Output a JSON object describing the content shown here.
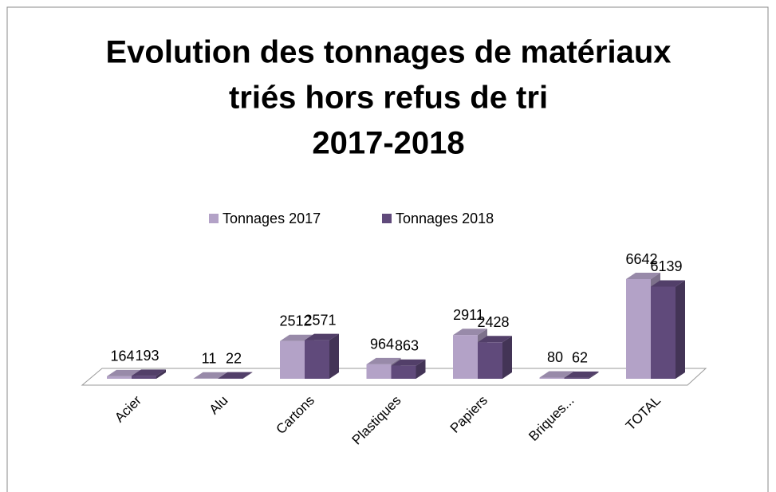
{
  "chart_data": {
    "type": "bar3d",
    "title": [
      "Evolution des tonnages de matériaux",
      "triés hors refus de tri",
      "2017-2018"
    ],
    "categories": [
      "Acier",
      "Alu",
      "Cartons",
      "Plastiques",
      "Papiers",
      "Briques...",
      "TOTAL"
    ],
    "series": [
      {
        "name": "Tonnages 2017",
        "color": "#b3a2c7",
        "values": [
          164,
          11,
          2512,
          964,
          2911,
          80,
          6642
        ]
      },
      {
        "name": "Tonnages 2018",
        "color": "#604a7b",
        "values": [
          193,
          22,
          2571,
          863,
          2428,
          62,
          6139
        ]
      }
    ],
    "legend": "top"
  }
}
